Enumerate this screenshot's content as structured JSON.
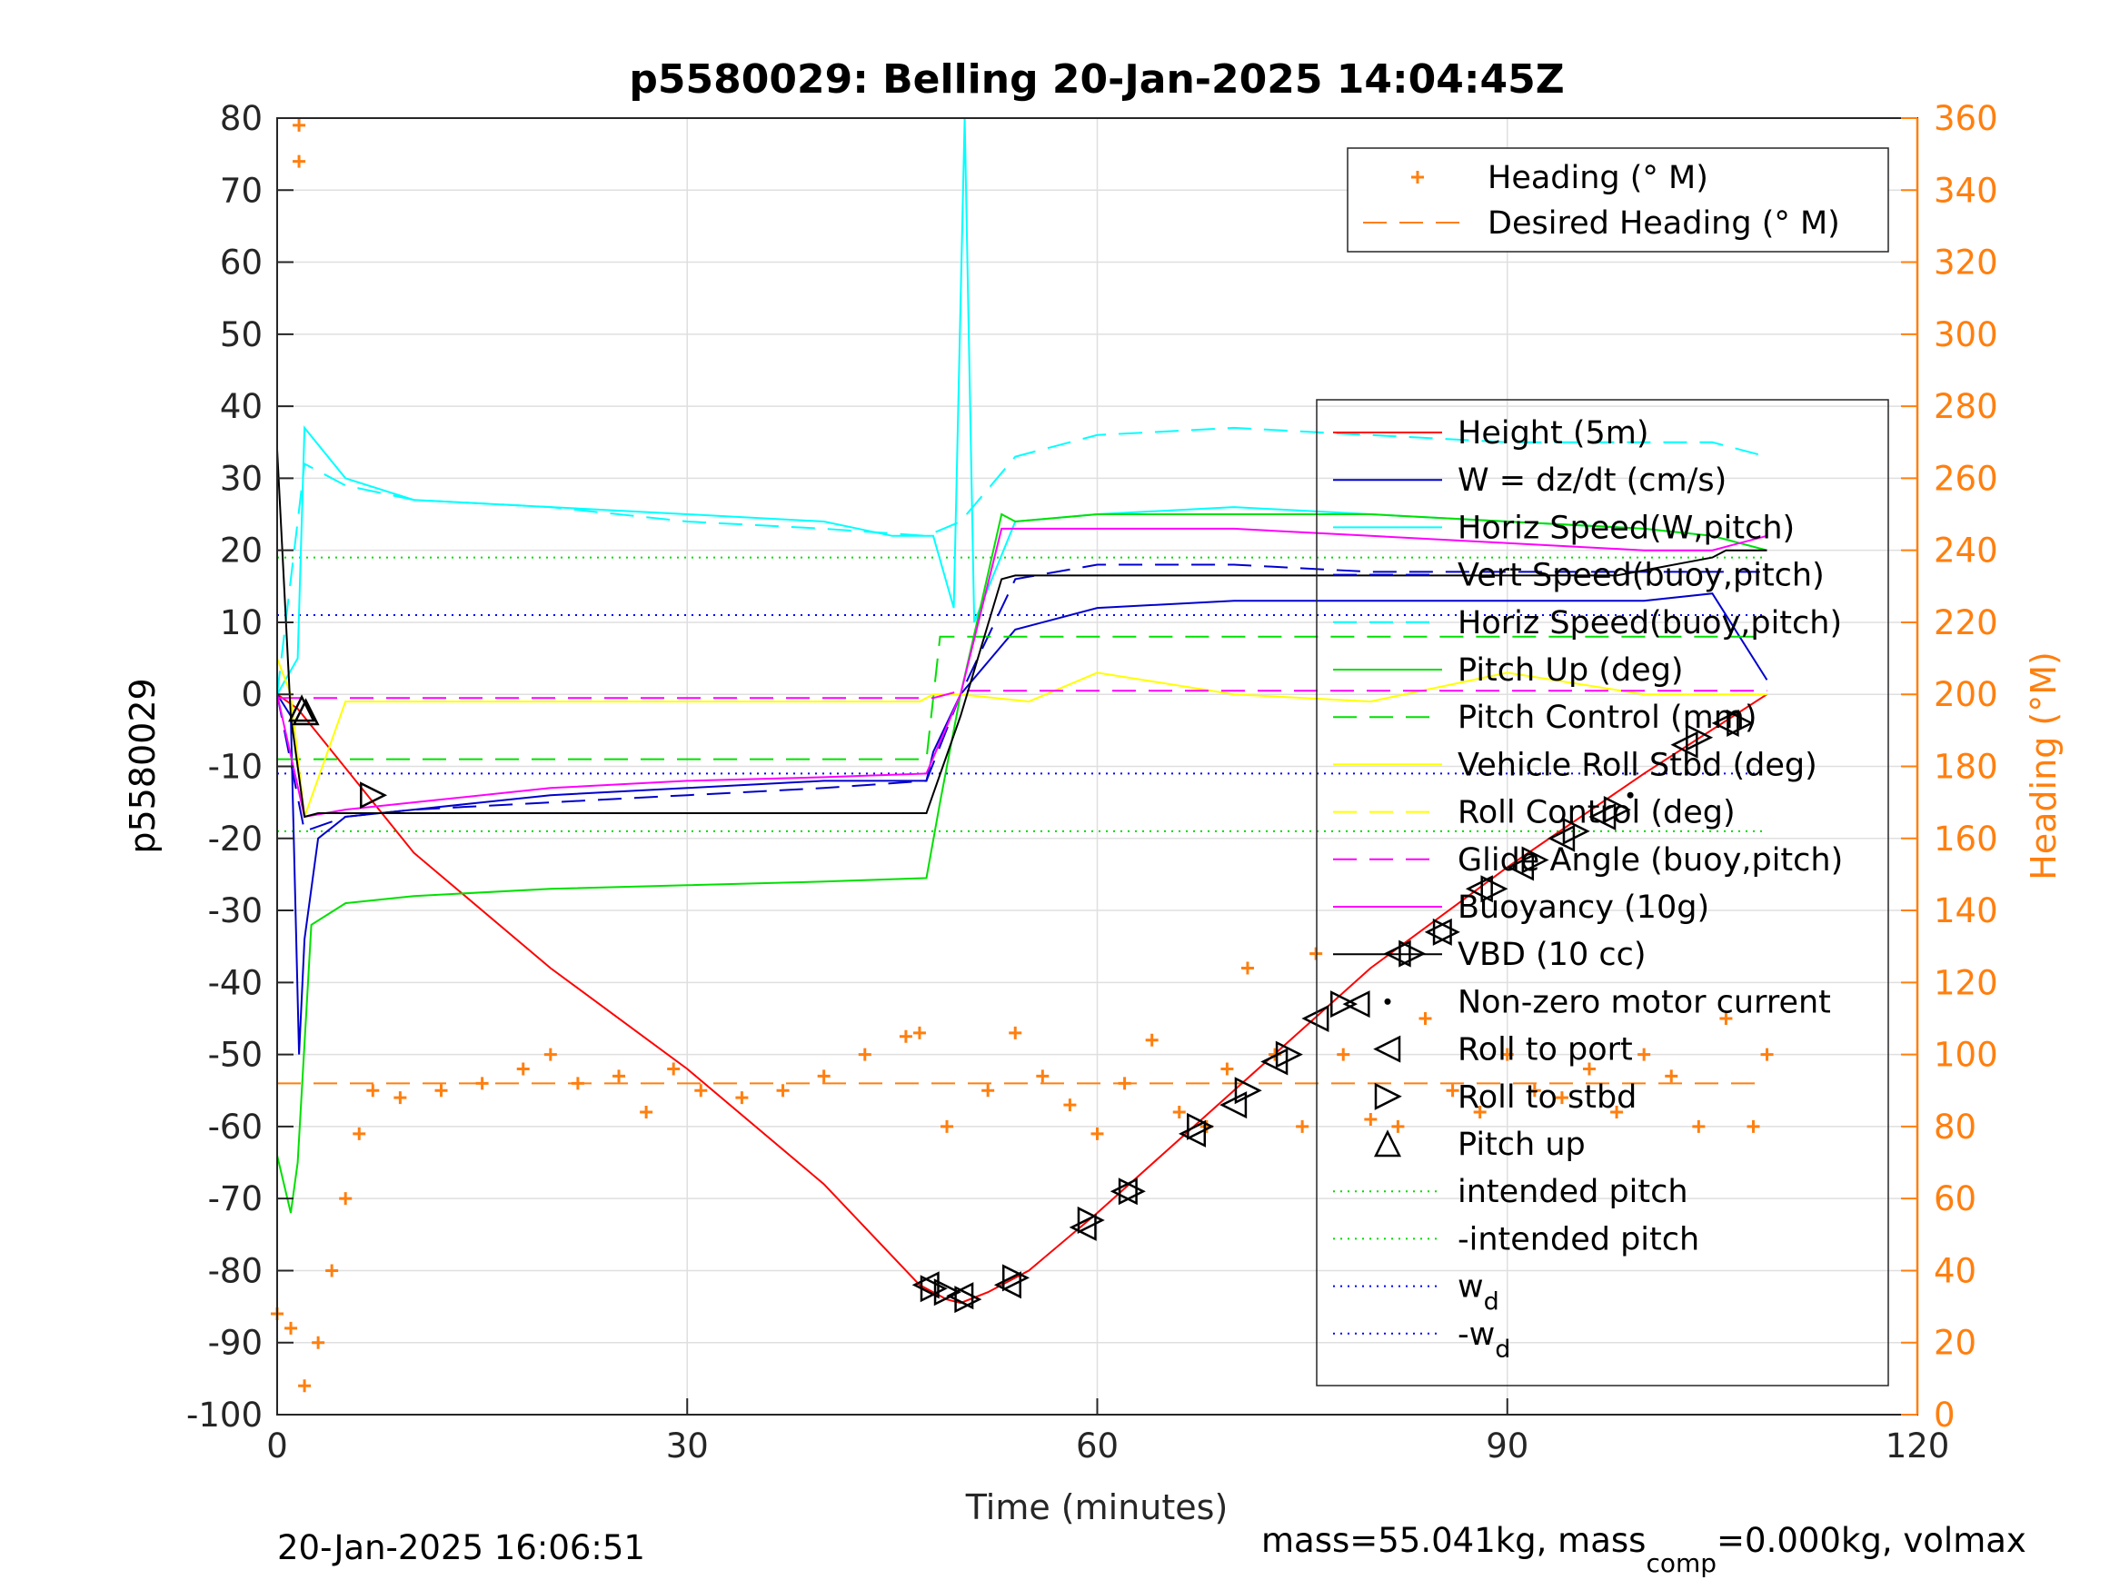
{
  "title": "p5580029: Belling 20-Jan-2025 14:04:45Z",
  "xlabel": "Time (minutes)",
  "ylabel_left": "p5580029",
  "ylabel_right": "Heading (°M)",
  "footer_left": "20-Jan-2025 16:06:51",
  "footer_right": {
    "prefix": "mass=55.041kg, mass",
    "sub": "comp",
    "suffix": "=0.000kg, volmax"
  },
  "colors": {
    "heading": "#ff7f0e",
    "height": "#ff0000",
    "w": "#0000cd",
    "horiz_w": "#00ffff",
    "pitch": "#00e000",
    "roll": "#ffff00",
    "glide": "#ff00ff",
    "vbd": "#000000",
    "wd": "#0000ff",
    "intended": "#00dd00"
  },
  "legend_heading": [
    {
      "label": "Heading (° M)",
      "style": "plus",
      "color": "#ff7f0e"
    },
    {
      "label": "Desired Heading (° M)",
      "style": "dash",
      "color": "#ff7f0e"
    }
  ],
  "legend_main": [
    {
      "label": "Height (5m)",
      "style": "solid",
      "color": "#ff0000"
    },
    {
      "label": "W = dz/dt (cm/s)",
      "style": "solid",
      "color": "#0000cd"
    },
    {
      "label": "Horiz Speed(W,pitch)",
      "style": "solid",
      "color": "#00ffff"
    },
    {
      "label": "Vert Speed(buoy,pitch)",
      "style": "dash",
      "color": "#0000cd"
    },
    {
      "label": "Horiz Speed(buoy,pitch)",
      "style": "dash",
      "color": "#00ffff"
    },
    {
      "label": "Pitch Up (deg)",
      "style": "solid",
      "color": "#00e000"
    },
    {
      "label": "Pitch Control (mm)",
      "style": "dash",
      "color": "#00e000"
    },
    {
      "label": "Vehicle Roll Stbd (deg)",
      "style": "solid",
      "color": "#ffff00"
    },
    {
      "label": "Roll Control (deg)",
      "style": "dash",
      "color": "#ffff00"
    },
    {
      "label": "Glide Angle (buoy,pitch)",
      "style": "dash",
      "color": "#ff00ff"
    },
    {
      "label": "Buoyancy (10g)",
      "style": "solid",
      "color": "#ff00ff"
    },
    {
      "label": "VBD (10 cc)",
      "style": "solid",
      "color": "#000000"
    },
    {
      "label": "Non-zero motor current",
      "style": "dot",
      "color": "#000000"
    },
    {
      "label": "Roll to port",
      "style": "tri-left",
      "color": "#000000"
    },
    {
      "label": "Roll to stbd",
      "style": "tri-right",
      "color": "#000000"
    },
    {
      "label": "Pitch up",
      "style": "tri-up",
      "color": "#000000"
    },
    {
      "label": "intended pitch",
      "style": "dotted",
      "color": "#00dd00"
    },
    {
      "label": "-intended pitch",
      "style": "dotted",
      "color": "#00dd00"
    },
    {
      "label": "w",
      "sub": "d",
      "style": "dotted",
      "color": "#0000ff"
    },
    {
      "label": "-w",
      "sub": "d",
      "style": "dotted",
      "color": "#0000ff"
    }
  ],
  "chart_data": {
    "type": "line",
    "xlim": [
      0,
      120
    ],
    "xticks": [
      0,
      30,
      60,
      90,
      120
    ],
    "ylim_left": [
      -100,
      80
    ],
    "yticks_left": [
      -100,
      -90,
      -80,
      -70,
      -60,
      -50,
      -40,
      -30,
      -20,
      -10,
      0,
      10,
      20,
      30,
      40,
      50,
      60,
      70,
      80
    ],
    "ylim_right": [
      0,
      360
    ],
    "yticks_right": [
      0,
      20,
      40,
      60,
      80,
      100,
      120,
      140,
      160,
      180,
      200,
      220,
      240,
      260,
      280,
      300,
      320,
      340,
      360
    ],
    "grid": true,
    "reference_lines": {
      "intended_pitch": 19,
      "neg_intended_pitch": -19,
      "wd": 11,
      "neg_wd": -11,
      "desired_heading": 92
    },
    "series": [
      {
        "name": "Height (5m)",
        "x": [
          0,
          1.5,
          10,
          20,
          30,
          40,
          47,
          49,
          50,
          52,
          55,
          60,
          70,
          80,
          90,
          100,
          109
        ],
        "y": [
          0,
          -2,
          -22,
          -38,
          -52,
          -68,
          -82,
          -84,
          -84.5,
          -83,
          -80,
          -72,
          -55,
          -38,
          -24,
          -11,
          0
        ]
      },
      {
        "name": "W = dz/dt (cm/s)",
        "x": [
          0,
          1,
          1.6,
          2,
          3,
          5,
          10,
          20,
          30,
          40,
          47.5,
          48,
          50,
          54,
          60,
          70,
          80,
          90,
          100,
          105,
          109
        ],
        "y": [
          0,
          -3,
          -50,
          -34,
          -20,
          -17,
          -16,
          -14,
          -13,
          -12,
          -12,
          -8,
          0,
          9,
          12,
          13,
          13,
          13,
          13,
          14,
          2
        ]
      },
      {
        "name": "Horiz Speed(W,pitch)",
        "x": [
          0,
          1.5,
          2,
          5,
          10,
          20,
          30,
          40,
          45,
          47,
          48,
          49.5,
          50.3,
          51,
          54,
          60,
          70,
          80,
          90,
          100,
          105,
          109
        ],
        "y": [
          0,
          5,
          37,
          30,
          27,
          26,
          25,
          24,
          22,
          22,
          22,
          12,
          80,
          10,
          24,
          25,
          26,
          25,
          24,
          23,
          22,
          20
        ]
      },
      {
        "name": "Vert Speed(buoy,pitch)",
        "x": [
          0,
          2,
          5,
          10,
          20,
          30,
          40,
          47.5,
          50,
          54,
          60,
          70,
          80,
          90,
          100,
          105,
          109
        ],
        "y": [
          0,
          -19,
          -17,
          -16,
          -15,
          -14,
          -13,
          -12,
          0,
          16,
          18,
          18,
          17,
          17,
          17,
          17,
          17
        ]
      },
      {
        "name": "Horiz Speed(buoy,pitch)",
        "x": [
          0,
          2,
          5,
          10,
          20,
          30,
          40,
          47.5,
          50,
          54,
          60,
          70,
          80,
          90,
          100,
          105,
          109
        ],
        "y": [
          0,
          32,
          29,
          27,
          26,
          24,
          23,
          22,
          24,
          33,
          36,
          37,
          36,
          35,
          35,
          35,
          33
        ]
      },
      {
        "name": "Pitch Up (deg)",
        "x": [
          0,
          1,
          1.5,
          2.5,
          5,
          10,
          20,
          30,
          40,
          47.5,
          48.5,
          50,
          53,
          54,
          60,
          70,
          80,
          90,
          100,
          105,
          109
        ],
        "y": [
          -64,
          -72,
          -65,
          -32,
          -29,
          -28,
          -27,
          -26.5,
          -26,
          -25.5,
          -15,
          0,
          25,
          24,
          25,
          25,
          25,
          24,
          23,
          22,
          20
        ]
      },
      {
        "name": "Pitch Control (mm)",
        "x": [
          0,
          2,
          4,
          47.5,
          48.5,
          54,
          109
        ],
        "y": [
          -9,
          -9,
          -9,
          -9,
          8,
          8,
          8
        ]
      },
      {
        "name": "Vehicle Roll Stbd (deg)",
        "x": [
          0,
          1,
          2,
          5,
          10,
          20,
          30,
          40,
          47,
          48,
          50,
          55,
          60,
          70,
          80,
          90,
          100,
          109
        ],
        "y": [
          5,
          0,
          -17,
          -1,
          -1,
          -1,
          -1,
          -1,
          -1,
          0,
          0,
          -1,
          3,
          0,
          -1,
          3,
          0,
          0
        ]
      },
      {
        "name": "Glide Angle (buoy,pitch)",
        "x": [
          0,
          48,
          50,
          109
        ],
        "y": [
          -0.5,
          -0.5,
          0.5,
          0.5
        ]
      },
      {
        "name": "Buoyancy (10g)",
        "x": [
          0,
          2,
          5,
          10,
          20,
          30,
          40,
          47.5,
          50,
          53,
          60,
          70,
          80,
          90,
          100,
          105,
          109
        ],
        "y": [
          0,
          -17,
          -16,
          -15,
          -13,
          -12,
          -11.5,
          -11,
          0,
          23,
          23,
          23,
          22,
          21,
          20,
          20,
          22
        ]
      },
      {
        "name": "VBD (10 cc)",
        "x": [
          0,
          1,
          2,
          3,
          47.5,
          50,
          53,
          54,
          98,
          105,
          106,
          109
        ],
        "y": [
          34,
          -3,
          -17,
          -16.5,
          -16.5,
          -3,
          16,
          16.5,
          16.5,
          19,
          20,
          20
        ]
      },
      {
        "name": "Heading (° M)",
        "axis": "right",
        "x": [
          0,
          1,
          2,
          3,
          4,
          5,
          6,
          7,
          9,
          12,
          15,
          18,
          20,
          22,
          25,
          27,
          29,
          31,
          34,
          37,
          40,
          43,
          46,
          47,
          49,
          52,
          54,
          56,
          58,
          60,
          62,
          64,
          66,
          68,
          69.5,
          71,
          73,
          75,
          76,
          78,
          80,
          82,
          84,
          86,
          88,
          90,
          92,
          94,
          96,
          98,
          100,
          102,
          104,
          106,
          108,
          109
        ],
        "y": [
          28,
          24,
          8,
          20,
          40,
          60,
          78,
          90,
          88,
          90,
          92,
          96,
          100,
          92,
          94,
          84,
          96,
          90,
          88,
          90,
          94,
          100,
          105,
          106,
          80,
          90,
          106,
          94,
          86,
          78,
          92,
          104,
          84,
          80,
          96,
          124,
          100,
          80,
          128,
          100,
          82,
          80,
          110,
          90,
          84,
          100,
          90,
          88,
          96,
          84,
          100,
          94,
          80,
          110,
          80,
          100
        ]
      }
    ],
    "markers": {
      "roll_to_port": {
        "x": [
          47.5,
          50,
          53.5,
          59,
          62,
          67,
          70,
          73,
          76,
          79,
          82,
          85,
          88,
          91,
          94,
          97,
          103,
          106
        ],
        "y": [
          -82,
          -83.5,
          -82,
          -74,
          -69,
          -61,
          -57,
          -51,
          -45,
          -43,
          -36,
          -33,
          -27,
          -24,
          -20,
          -17,
          -7,
          -4
        ]
      },
      "roll_to_stbd": {
        "x": [
          7,
          48,
          49,
          50.5,
          54,
          59.5,
          62.5,
          67.5,
          71,
          74,
          78,
          83,
          85.5,
          89,
          92,
          95,
          98,
          104,
          107
        ],
        "y": [
          -14,
          -82.5,
          -83,
          -84,
          -81,
          -73,
          -69,
          -60,
          -55,
          -50,
          -43,
          -36,
          -33,
          -27,
          -23,
          -19,
          -16,
          -6,
          -4
        ]
      },
      "pitch_up": {
        "x": [
          1.8,
          2.1
        ],
        "y": [
          -2,
          -2.5
        ]
      },
      "motor_current": {
        "x": [
          99
        ],
        "y": [
          -14
        ]
      }
    },
    "heading_early_points": {
      "x": [
        1.6,
        1.6
      ],
      "y": [
        358,
        348
      ]
    }
  }
}
